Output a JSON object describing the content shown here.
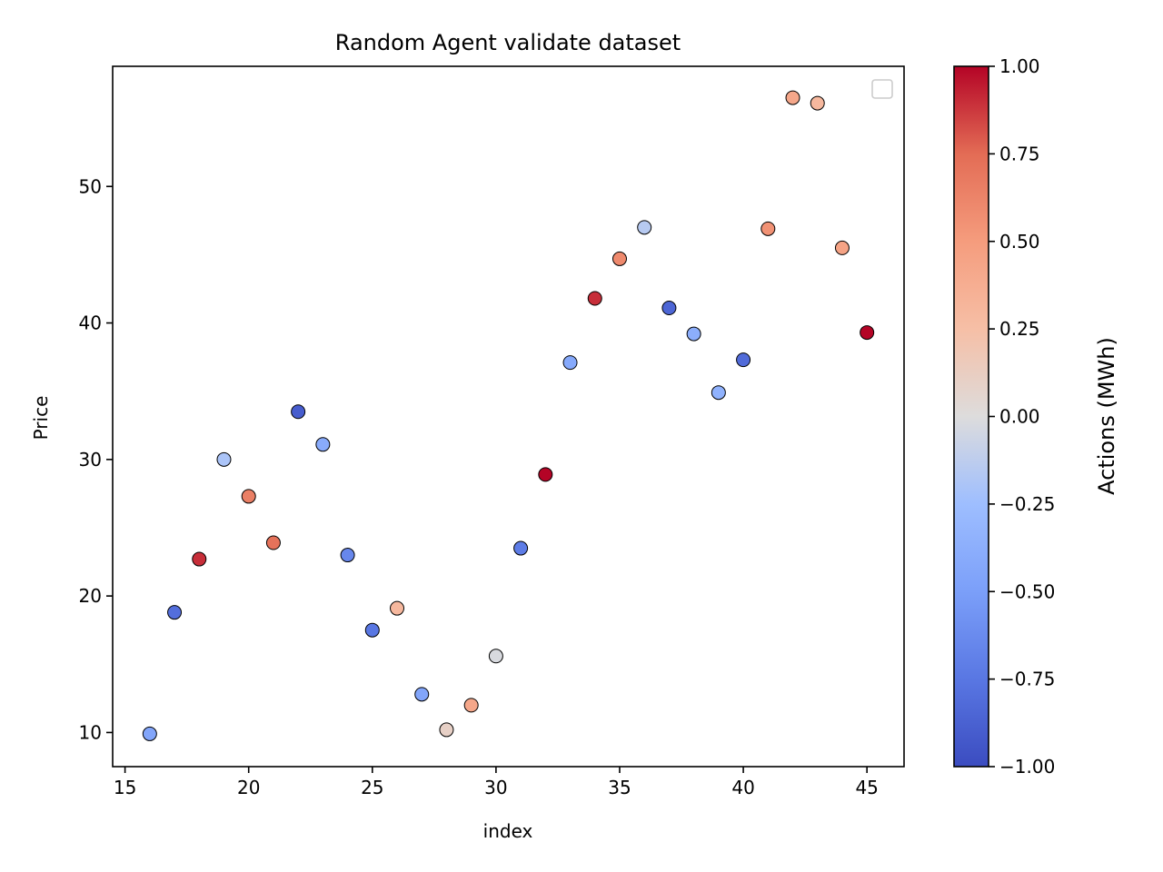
{
  "chart_data": {
    "type": "scatter",
    "title": "Random Agent validate dataset",
    "xlabel": "index",
    "ylabel": "Price",
    "xlim": [
      14.5,
      46.5
    ],
    "ylim": [
      7.5,
      58.8
    ],
    "xticks": [
      15,
      20,
      25,
      30,
      35,
      40,
      45
    ],
    "yticks": [
      10,
      20,
      30,
      40,
      50
    ],
    "grid": false,
    "legend": "top-right (empty)",
    "colormap": "coolwarm",
    "colorbar": {
      "label": "Actions (MWh)",
      "range": [
        -1.0,
        1.0
      ],
      "ticks": [
        -1.0,
        -0.75,
        -0.5,
        -0.25,
        0.0,
        0.25,
        0.5,
        0.75,
        1.0
      ],
      "tick_labels": [
        "−1.00",
        "−0.75",
        "−0.50",
        "−0.25",
        "0.00",
        "0.25",
        "0.50",
        "0.75",
        "1.00"
      ]
    },
    "points": [
      {
        "x": 16,
        "y": 9.9,
        "action": -0.45
      },
      {
        "x": 17,
        "y": 18.8,
        "action": -0.8
      },
      {
        "x": 18,
        "y": 22.7,
        "action": 0.9
      },
      {
        "x": 19,
        "y": 30.0,
        "action": -0.2
      },
      {
        "x": 20,
        "y": 27.3,
        "action": 0.65
      },
      {
        "x": 21,
        "y": 23.9,
        "action": 0.72
      },
      {
        "x": 22,
        "y": 33.5,
        "action": -0.9
      },
      {
        "x": 23,
        "y": 31.1,
        "action": -0.4
      },
      {
        "x": 24,
        "y": 23.0,
        "action": -0.65
      },
      {
        "x": 25,
        "y": 17.5,
        "action": -0.75
      },
      {
        "x": 26,
        "y": 19.1,
        "action": 0.3
      },
      {
        "x": 27,
        "y": 12.8,
        "action": -0.45
      },
      {
        "x": 28,
        "y": 10.2,
        "action": 0.1
      },
      {
        "x": 29,
        "y": 12.0,
        "action": 0.42
      },
      {
        "x": 30,
        "y": 15.6,
        "action": -0.02
      },
      {
        "x": 31,
        "y": 23.5,
        "action": -0.72
      },
      {
        "x": 32,
        "y": 28.9,
        "action": 1.0
      },
      {
        "x": 33,
        "y": 37.1,
        "action": -0.42
      },
      {
        "x": 34,
        "y": 41.8,
        "action": 0.9
      },
      {
        "x": 35,
        "y": 44.7,
        "action": 0.6
      },
      {
        "x": 36,
        "y": 47.0,
        "action": -0.15
      },
      {
        "x": 37,
        "y": 41.1,
        "action": -0.85
      },
      {
        "x": 38,
        "y": 39.2,
        "action": -0.38
      },
      {
        "x": 39,
        "y": 34.9,
        "action": -0.35
      },
      {
        "x": 40,
        "y": 37.3,
        "action": -0.82
      },
      {
        "x": 41,
        "y": 46.9,
        "action": 0.55
      },
      {
        "x": 42,
        "y": 56.5,
        "action": 0.42
      },
      {
        "x": 43,
        "y": 56.1,
        "action": 0.3
      },
      {
        "x": 44,
        "y": 45.5,
        "action": 0.45
      },
      {
        "x": 45,
        "y": 39.3,
        "action": 1.0
      }
    ]
  }
}
